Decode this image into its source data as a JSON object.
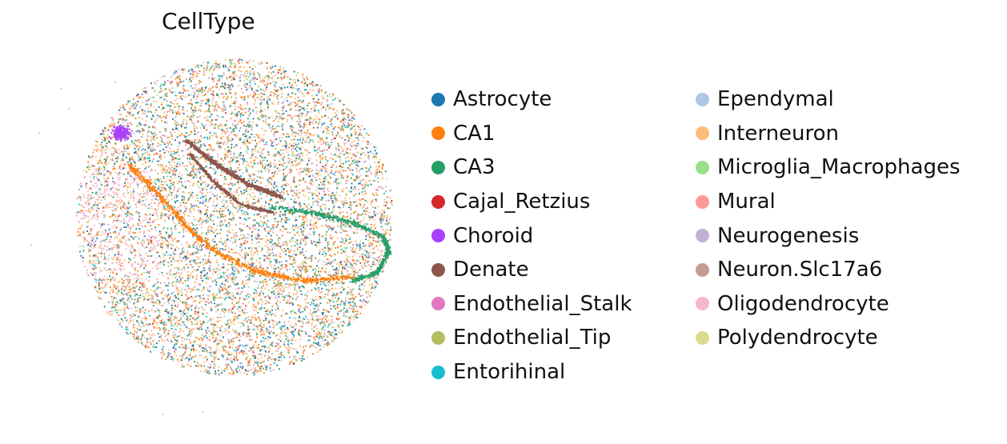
{
  "chart_data": {
    "type": "scatter",
    "title": "CellType",
    "xlabel": "",
    "ylabel": "",
    "axes_visible": false,
    "grid": false,
    "legend_placement": "right",
    "legend_columns": 2,
    "description_of_points": "spatial transcriptomics spots in a circular section, colored by cell type",
    "series": [
      {
        "name": "Astrocyte",
        "color": "#1f77b4"
      },
      {
        "name": "CA1",
        "color": "#ff7f0e"
      },
      {
        "name": "CA3",
        "color": "#279e68"
      },
      {
        "name": "Cajal_Retzius",
        "color": "#d62728"
      },
      {
        "name": "Choroid",
        "color": "#aa40fc"
      },
      {
        "name": "Denate",
        "color": "#8c564b"
      },
      {
        "name": "Endothelial_Stalk",
        "color": "#e377c2"
      },
      {
        "name": "Endothelial_Tip",
        "color": "#b5bd61"
      },
      {
        "name": "Entorihinal",
        "color": "#17becf"
      },
      {
        "name": "Ependymal",
        "color": "#aec7e8"
      },
      {
        "name": "Interneuron",
        "color": "#ffbb78"
      },
      {
        "name": "Microglia_Macrophages",
        "color": "#98df8a"
      },
      {
        "name": "Mural",
        "color": "#ff9896"
      },
      {
        "name": "Neurogenesis",
        "color": "#c5b0d5"
      },
      {
        "name": "Neuron.Slc17a6",
        "color": "#c49c94"
      },
      {
        "name": "Oligodendrocyte",
        "color": "#f7b6d2"
      },
      {
        "name": "Polydendrocyte",
        "color": "#dbdb8d"
      }
    ]
  }
}
